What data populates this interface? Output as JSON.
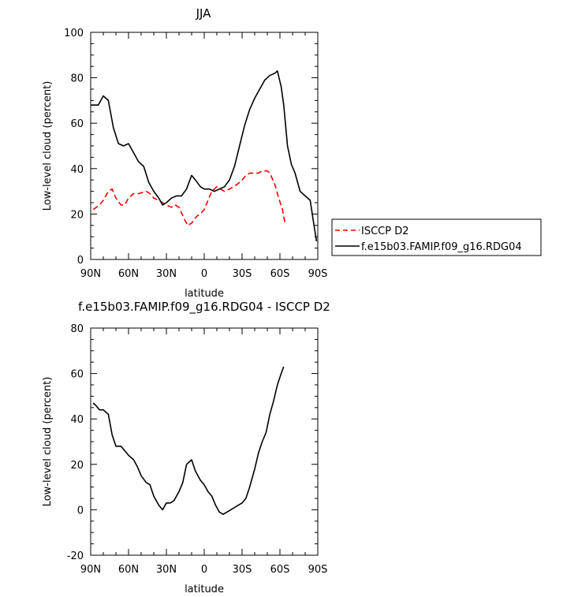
{
  "chart_data": [
    {
      "type": "line",
      "title": "JJA",
      "xlabel": "latitude",
      "ylabel": "Low-level cloud (percent)",
      "xlim": [
        90,
        -90
      ],
      "ylim": [
        0,
        100
      ],
      "x_tick_values": [
        90,
        60,
        30,
        0,
        -30,
        -60,
        -90
      ],
      "x_tick_labels": [
        "90N",
        "60N",
        "30N",
        "0",
        "30S",
        "60S",
        "90S"
      ],
      "y_ticks": [
        0,
        20,
        40,
        60,
        80,
        100
      ],
      "grid": false,
      "legend_position": "right-outside",
      "series": [
        {
          "name": "ISCCP D2",
          "color": "#ff0000",
          "dash": "dashed",
          "x": [
            88,
            83,
            80,
            76,
            73,
            70,
            66,
            63,
            60,
            56,
            52,
            46,
            43,
            40,
            36,
            33,
            30,
            26,
            23,
            20,
            16,
            13,
            10,
            6,
            3,
            0,
            -3,
            -6,
            -10,
            -13,
            -16,
            -20,
            -23,
            -26,
            -30,
            -33,
            -36,
            -40,
            -43,
            -46,
            -50,
            -52,
            -56,
            -59,
            -62,
            -64
          ],
          "y": [
            22,
            24,
            26,
            30,
            31,
            27,
            24,
            24,
            27,
            29,
            29,
            30,
            29,
            27,
            26,
            25,
            24,
            23,
            24,
            23,
            18,
            15,
            16,
            19,
            20,
            22,
            26,
            30,
            32,
            31,
            30,
            31,
            32,
            33,
            35,
            37,
            38,
            38,
            38,
            39,
            39,
            38,
            33,
            27,
            22,
            16
          ]
        },
        {
          "name": "f.e15b03.FAMIP.f09_g16.RDG04",
          "color": "#000000",
          "dash": "solid",
          "x": [
            90,
            87,
            84,
            80,
            76,
            72,
            68,
            64,
            60,
            56,
            52,
            48,
            44,
            40,
            36,
            33,
            30,
            26,
            22,
            18,
            14,
            10,
            7,
            3,
            0,
            -4,
            -8,
            -12,
            -16,
            -20,
            -24,
            -28,
            -32,
            -36,
            -40,
            -44,
            -48,
            -52,
            -56,
            -58,
            -61,
            -63,
            -66,
            -69,
            -72,
            -76,
            -80,
            -84,
            -87,
            -89
          ],
          "y": [
            68,
            68,
            68,
            72,
            70,
            58,
            51,
            50,
            51,
            47,
            43,
            41,
            34,
            30,
            27,
            24,
            25,
            27,
            28,
            28,
            31,
            37,
            35,
            32,
            31,
            31,
            30,
            31,
            32,
            35,
            41,
            50,
            59,
            66,
            71,
            75,
            79,
            81,
            82,
            83,
            76,
            68,
            50,
            42,
            38,
            30,
            28,
            26,
            15,
            8
          ]
        }
      ]
    },
    {
      "type": "line",
      "title": "f.e15b03.FAMIP.f09_g16.RDG04 - ISCCP D2",
      "xlabel": "latitude",
      "ylabel": "Low-level cloud (percent)",
      "xlim": [
        90,
        -90
      ],
      "ylim": [
        -20,
        80
      ],
      "x_tick_values": [
        90,
        60,
        30,
        0,
        -30,
        -60,
        -90
      ],
      "x_tick_labels": [
        "90N",
        "60N",
        "30N",
        "0",
        "30S",
        "60S",
        "90S"
      ],
      "y_ticks": [
        -20,
        0,
        20,
        40,
        60,
        80
      ],
      "y_tick_labels": [
        "-20",
        "0",
        "20",
        "40",
        "60",
        "80"
      ],
      "grid": false,
      "series": [
        {
          "color": "#000000",
          "dash": "solid",
          "x": [
            88,
            86,
            83,
            80,
            76,
            73,
            70,
            66,
            63,
            60,
            56,
            53,
            50,
            46,
            43,
            40,
            36,
            33,
            30,
            27,
            24,
            20,
            17,
            14,
            10,
            7,
            3,
            0,
            -3,
            -6,
            -9,
            -12,
            -15,
            -18,
            -21,
            -24,
            -27,
            -30,
            -33,
            -36,
            -40,
            -43,
            -46,
            -49,
            -52,
            -55,
            -58,
            -61,
            -63
          ],
          "y": [
            47,
            46,
            44,
            44,
            42,
            33,
            28,
            28,
            26,
            24,
            22,
            19,
            15,
            12,
            11,
            6,
            2,
            0,
            3,
            3,
            4,
            8,
            12,
            20,
            22,
            17,
            13,
            11,
            8,
            6,
            2,
            -1,
            -2,
            -1,
            0,
            1,
            2,
            3,
            5,
            10,
            18,
            25,
            30,
            34,
            42,
            48,
            55,
            60,
            63
          ]
        }
      ]
    }
  ]
}
